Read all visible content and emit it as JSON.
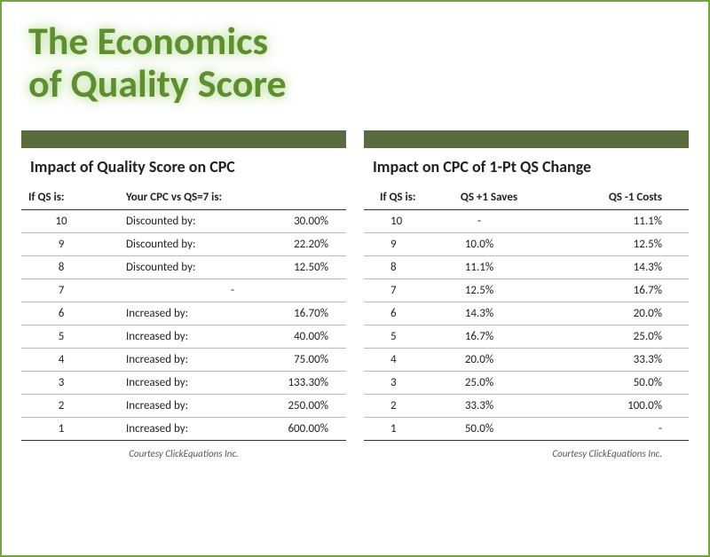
{
  "colors": {
    "border": "#70a83a",
    "title": "#5d8e2f",
    "bar": "#5a6b3d",
    "text": "#222222",
    "rule": "#333333",
    "row_rule": "#bbbbbb"
  },
  "main_title_line1": "The Economics",
  "main_title_line2": "of Quality Score",
  "left_panel": {
    "title": "Impact of Quality Score on CPC",
    "col_qs": "If QS is:",
    "col_cpc": "Your CPC vs QS=7 is:",
    "rows": [
      {
        "qs": "10",
        "label": "Discounted by:",
        "value": "30.00%"
      },
      {
        "qs": "9",
        "label": "Discounted by:",
        "value": "22.20%"
      },
      {
        "qs": "8",
        "label": "Discounted by:",
        "value": "12.50%"
      },
      {
        "qs": "7",
        "label": "",
        "value": "-"
      },
      {
        "qs": "6",
        "label": "Increased by:",
        "value": "16.70%"
      },
      {
        "qs": "5",
        "label": "Increased by:",
        "value": "40.00%"
      },
      {
        "qs": "4",
        "label": "Increased by:",
        "value": "75.00%"
      },
      {
        "qs": "3",
        "label": "Increased by:",
        "value": "133.30%"
      },
      {
        "qs": "2",
        "label": "Increased by:",
        "value": "250.00%"
      },
      {
        "qs": "1",
        "label": "Increased by:",
        "value": "600.00%"
      }
    ],
    "credit": "Courtesy ClickEquations Inc."
  },
  "right_panel": {
    "title": "Impact on CPC of 1-Pt QS Change",
    "col_qs": "If QS is:",
    "col_saves": "QS +1 Saves",
    "col_costs": "QS -1 Costs",
    "rows": [
      {
        "qs": "10",
        "saves": "-",
        "costs": "11.1%"
      },
      {
        "qs": "9",
        "saves": "10.0%",
        "costs": "12.5%"
      },
      {
        "qs": "8",
        "saves": "11.1%",
        "costs": "14.3%"
      },
      {
        "qs": "7",
        "saves": "12.5%",
        "costs": "16.7%"
      },
      {
        "qs": "6",
        "saves": "14.3%",
        "costs": "20.0%"
      },
      {
        "qs": "5",
        "saves": "16.7%",
        "costs": "25.0%"
      },
      {
        "qs": "4",
        "saves": "20.0%",
        "costs": "33.3%"
      },
      {
        "qs": "3",
        "saves": "25.0%",
        "costs": "50.0%"
      },
      {
        "qs": "2",
        "saves": "33.3%",
        "costs": "100.0%"
      },
      {
        "qs": "1",
        "saves": "50.0%",
        "costs": "-"
      }
    ],
    "credit": "Courtesy ClickEquations Inc."
  }
}
